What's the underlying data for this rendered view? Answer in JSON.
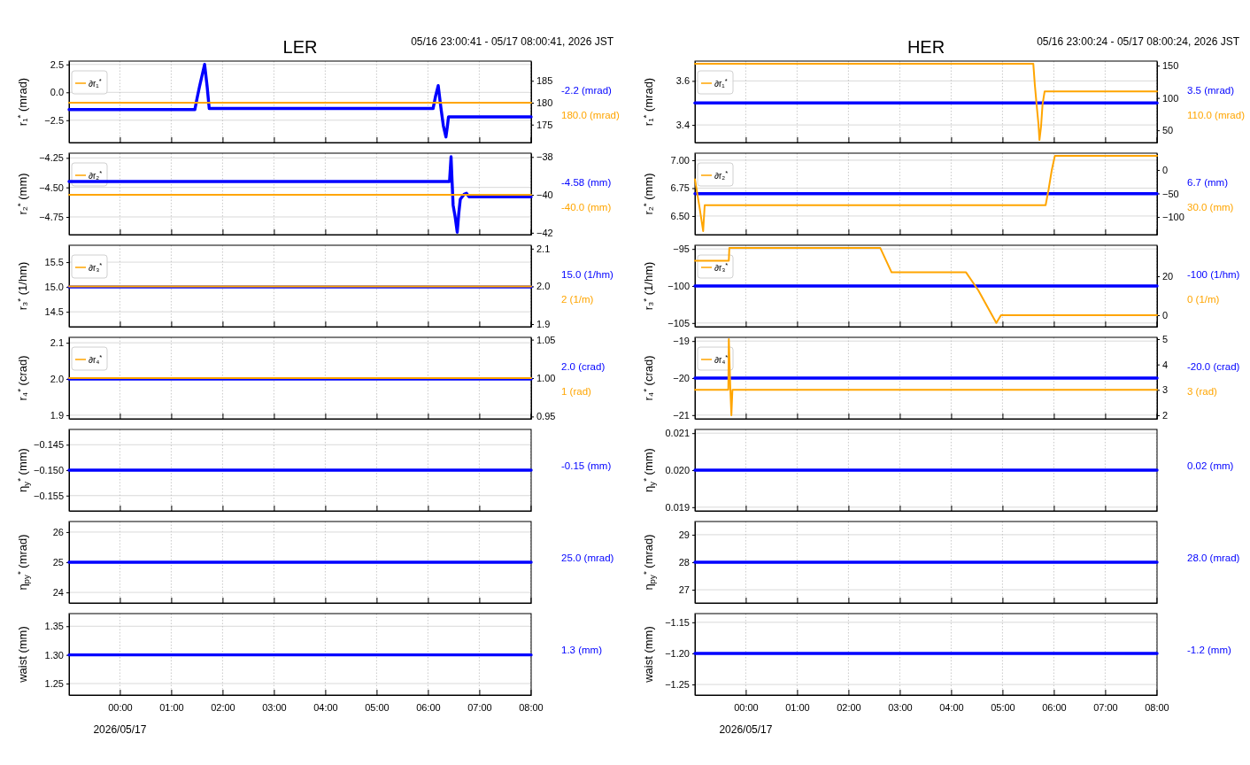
{
  "chart_data": [
    {
      "type": "line",
      "title": "LER",
      "subtitle": "05/16 23:00:41 - 05/17 08:00:41, 2026 JST",
      "ylabel": "r₁$^{*}$ (mrad)",
      "tick_labels": "y",
      "xlim": [
        -0.99,
        8.01
      ],
      "xticks": [
        0,
        1,
        2,
        3,
        4,
        5,
        6,
        7,
        8
      ],
      "ylim": [
        -4.5,
        2.8
      ],
      "yticks": [
        {
          "value": -2.5,
          "label": "−2.5"
        },
        {
          "value": 0,
          "label": "0.0"
        },
        {
          "value": 2.5,
          "label": "2.5"
        }
      ],
      "y2lim": [
        170.9,
        189.5
      ],
      "y2ticks": [
        175,
        180,
        185
      ],
      "grid": true,
      "legend": "top left",
      "annotations": [
        "-2.2 (mrad)",
        "180.0 (mrad)"
      ],
      "series": [
        {
          "color": "#0000ff",
          "x": [
            -0.99,
            1.46,
            1.5,
            1.55,
            1.6,
            1.65,
            1.7,
            1.74,
            6.1,
            6.15,
            6.2,
            6.25,
            6.3,
            6.35,
            6.38,
            6.4,
            8.01
          ],
          "values": [
            -1.55,
            -1.55,
            -0.6,
            0.5,
            1.5,
            2.5,
            0.5,
            -1.45,
            -1.45,
            -0.3,
            0.6,
            -1.3,
            -3,
            -4.0,
            -3.0,
            -2.2,
            -2.2
          ]
        },
        {
          "name": "∂r₁$^{*}$",
          "color": "#ffa500",
          "axis": "y2",
          "x": [
            -0.99,
            8.01
          ],
          "values": [
            180,
            180
          ]
        }
      ]
    },
    {
      "type": "line",
      "ylabel": "r₂$^{*}$ (mm)",
      "tick_labels": "y",
      "xlim": [
        -0.99,
        8.01
      ],
      "xticks": [
        0,
        1,
        2,
        3,
        4,
        5,
        6,
        7,
        8
      ],
      "ylim": [
        -4.9,
        -4.21
      ],
      "yticks": [
        {
          "value": -4.75,
          "label": "−4.75"
        },
        {
          "value": -4.5,
          "label": "−4.50"
        },
        {
          "value": -4.25,
          "label": "−4.25"
        }
      ],
      "y2lim": [
        -42.1,
        -37.8
      ],
      "y2ticks": [
        {
          "value": -42,
          "label": "−42"
        },
        {
          "value": -40,
          "label": "−40"
        },
        {
          "value": -38,
          "label": "−38"
        }
      ],
      "grid": true,
      "legend": "top left",
      "annotations": [
        "-4.58 (mm)",
        "-40.0 (mm)"
      ],
      "series": [
        {
          "color": "#0000ff",
          "x": [
            -0.99,
            6.42,
            6.45,
            6.47,
            6.49,
            6.53,
            6.57,
            6.6,
            6.63,
            6.7,
            6.75,
            6.8,
            8.01
          ],
          "values": [
            -4.45,
            -4.45,
            -4.24,
            -4.45,
            -4.65,
            -4.75,
            -4.88,
            -4.72,
            -4.6,
            -4.56,
            -4.55,
            -4.58,
            -4.58
          ]
        },
        {
          "name": "∂r₂$^{*}$",
          "color": "#ffa500",
          "axis": "y2",
          "x": [
            -0.99,
            8.01
          ],
          "values": [
            -40,
            -40
          ]
        }
      ]
    },
    {
      "type": "line",
      "ylabel": "r₃$^{*}$ (1/hm)",
      "tick_labels": "y",
      "xlim": [
        -0.99,
        8.01
      ],
      "xticks": [
        0,
        1,
        2,
        3,
        4,
        5,
        6,
        7,
        8
      ],
      "ylim": [
        14.2,
        15.84
      ],
      "yticks": [
        {
          "value": 14.5,
          "label": "14.5"
        },
        {
          "value": 15,
          "label": "15.0"
        },
        {
          "value": 15.5,
          "label": "15.5"
        }
      ],
      "y2lim": [
        1.893,
        2.109
      ],
      "y2ticks": [
        1.9,
        {
          "value": 2,
          "label": "2.0"
        },
        2.1
      ],
      "grid": true,
      "legend": "top left",
      "annotations": [
        "15.0 (1/hm)",
        "2 (1/m)"
      ],
      "series": [
        {
          "color": "#0000ff",
          "x": [
            -0.99,
            8.01
          ],
          "values": [
            15,
            15
          ]
        },
        {
          "name": "∂r₃$^{*}$",
          "color": "#ffa500",
          "axis": "y2",
          "x": [
            -0.99,
            8.01
          ],
          "values": [
            2,
            2
          ]
        }
      ]
    },
    {
      "type": "line",
      "ylabel": "r₄$^{*}$ (crad)",
      "tick_labels": "y",
      "xlim": [
        -0.99,
        8.01
      ],
      "xticks": [
        0,
        1,
        2,
        3,
        4,
        5,
        6,
        7,
        8
      ],
      "ylim": [
        1.89,
        2.115
      ],
      "yticks": [
        1.9,
        {
          "value": 2,
          "label": "2.0"
        },
        2.1
      ],
      "y2lim": [
        0.947,
        1.053
      ],
      "y2ticks": [
        0.95,
        {
          "value": 1,
          "label": "1.00"
        },
        1.05
      ],
      "grid": true,
      "legend": "top left",
      "annotations": [
        "2.0 (crad)",
        "1 (rad)"
      ],
      "series": [
        {
          "color": "#0000ff",
          "x": [
            -0.99,
            8.01
          ],
          "values": [
            2,
            2
          ]
        },
        {
          "name": "∂r₄$^{*}$",
          "color": "#ffa500",
          "axis": "y2",
          "x": [
            -0.99,
            8.01
          ],
          "values": [
            1,
            1
          ]
        }
      ]
    },
    {
      "type": "line",
      "ylabel": "η$_{y}$$^{*}$ (mm)",
      "tick_labels": "y",
      "xlim": [
        -0.99,
        8.01
      ],
      "xticks": [
        0,
        1,
        2,
        3,
        4,
        5,
        6,
        7,
        8
      ],
      "ylim": [
        -0.158,
        -0.142
      ],
      "yticks": [
        {
          "value": -0.155,
          "label": "−0.155"
        },
        {
          "value": -0.15,
          "label": "−0.150"
        },
        {
          "value": -0.145,
          "label": "−0.145"
        }
      ],
      "grid": true,
      "annotations": [
        "-0.15 (mm)"
      ],
      "series": [
        {
          "color": "#0000ff",
          "x": [
            -0.99,
            8.01
          ],
          "values": [
            -0.15,
            -0.15
          ]
        }
      ]
    },
    {
      "type": "line",
      "ylabel": "η$_{py}$$^{*}$ (mrad)",
      "tick_labels": "y",
      "xlim": [
        -0.99,
        8.01
      ],
      "xticks": [
        0,
        1,
        2,
        3,
        4,
        5,
        6,
        7,
        8
      ],
      "ylim": [
        23.65,
        26.35
      ],
      "yticks": [
        24,
        25,
        26
      ],
      "grid": true,
      "annotations": [
        "25.0 (mrad)"
      ],
      "series": [
        {
          "color": "#0000ff",
          "x": [
            -0.99,
            8.01
          ],
          "values": [
            25,
            25
          ]
        }
      ]
    },
    {
      "type": "line",
      "ylabel": "waist (mm)",
      "xlim": [
        -0.99,
        8.01
      ],
      "xticks": [
        {
          "value": 0,
          "label": "00:00"
        },
        {
          "value": 1,
          "label": "01:00"
        },
        {
          "value": 2,
          "label": "02:00"
        },
        {
          "value": 3,
          "label": "03:00"
        },
        {
          "value": 4,
          "label": "04:00"
        },
        {
          "value": 5,
          "label": "05:00"
        },
        {
          "value": 6,
          "label": "06:00"
        },
        {
          "value": 7,
          "label": "07:00"
        },
        {
          "value": 8,
          "label": "08:00"
        }
      ],
      "ylim": [
        1.23,
        1.372
      ],
      "yticks": [
        1.25,
        {
          "value": 1.3,
          "label": "1.30"
        },
        1.35
      ],
      "grid": true,
      "annotations": [
        "1.3 (mm)",
        "2026/05/17"
      ],
      "series": [
        {
          "color": "#0000ff",
          "x": [
            -0.99,
            8.01
          ],
          "values": [
            1.3,
            1.3
          ]
        }
      ]
    },
    {
      "type": "line",
      "title": "HER",
      "subtitle": "05/16 23:00:24 - 05/17 08:00:24, 2026 JST",
      "ylabel": "r₁$^{*}$ (mrad)",
      "tick_labels": "y",
      "xlim": [
        -0.99,
        8.01
      ],
      "xticks": [
        0,
        1,
        2,
        3,
        4,
        5,
        6,
        7,
        8
      ],
      "ylim": [
        3.32,
        3.69
      ],
      "yticks": [
        3.4,
        3.6
      ],
      "y2lim": [
        31,
        157
      ],
      "y2ticks": [
        50,
        100,
        150
      ],
      "grid": true,
      "legend": "top left",
      "annotations": [
        "3.5 (mrad)",
        "110.0 (mrad)"
      ],
      "series": [
        {
          "color": "#0000ff",
          "x": [
            -0.99,
            8.01
          ],
          "values": [
            3.5,
            3.5
          ]
        },
        {
          "name": "∂r₁$^{*}$",
          "color": "#ffa500",
          "axis": "y2",
          "x": [
            -0.99,
            5.6,
            5.63,
            5.67,
            5.7,
            5.72,
            5.75,
            5.78,
            5.82,
            8.01
          ],
          "values": [
            153,
            153,
            120,
            85,
            60,
            35,
            55,
            90,
            110,
            110
          ]
        }
      ]
    },
    {
      "type": "line",
      "ylabel": "r₂$^{*}$ (mm)",
      "tick_labels": "y",
      "xlim": [
        -0.99,
        8.01
      ],
      "xticks": [
        0,
        1,
        2,
        3,
        4,
        5,
        6,
        7,
        8
      ],
      "ylim": [
        6.333,
        7.063
      ],
      "yticks": [
        {
          "value": 6.5,
          "label": "6.50"
        },
        {
          "value": 6.75,
          "label": "6.75"
        },
        {
          "value": 7,
          "label": "7.00"
        }
      ],
      "y2lim": [
        -137.7,
        35.8
      ],
      "y2ticks": [
        {
          "value": -100,
          "label": "−100"
        },
        {
          "value": -50,
          "label": "−50"
        },
        0
      ],
      "grid": true,
      "legend": "top left",
      "annotations": [
        "6.7 (mm)",
        "30.0 (mm)"
      ],
      "series": [
        {
          "color": "#0000ff",
          "x": [
            -0.99,
            8.01
          ],
          "values": [
            6.7,
            6.7
          ]
        },
        {
          "name": "∂r₂$^{*}$",
          "color": "#ffa500",
          "axis": "y2",
          "x": [
            -0.99,
            -0.9,
            -0.83,
            -0.8,
            5.84,
            5.9,
            5.96,
            6.02,
            8.01
          ],
          "values": [
            -20,
            -80,
            -130,
            -75,
            -75,
            -40,
            0,
            30,
            30
          ]
        }
      ]
    },
    {
      "type": "line",
      "ylabel": "r₃$^{*}$ (1/hm)",
      "tick_labels": "y",
      "xlim": [
        -0.99,
        8.01
      ],
      "xticks": [
        0,
        1,
        2,
        3,
        4,
        5,
        6,
        7,
        8
      ],
      "ylim": [
        -105.5,
        -94.5
      ],
      "yticks": [
        {
          "value": -105,
          "label": "−105"
        },
        {
          "value": -100,
          "label": "−100"
        },
        {
          "value": -95,
          "label": "−95"
        }
      ],
      "y2lim": [
        -5.9,
        35.9
      ],
      "y2ticks": [
        0,
        20
      ],
      "grid": true,
      "legend": "top left",
      "annotations": [
        "-100 (1/hm)",
        "0 (1/m)"
      ],
      "series": [
        {
          "color": "#0000ff",
          "x": [
            -0.99,
            8.01
          ],
          "values": [
            -100,
            -100
          ]
        },
        {
          "name": "∂r₃$^{*}$",
          "color": "#ffa500",
          "axis": "y2",
          "x": [
            -0.99,
            -0.33,
            -0.32,
            2.62,
            2.84,
            4.29,
            4.53,
            4.88,
            4.97,
            8.01
          ],
          "values": [
            28,
            28,
            34.5,
            34.5,
            22,
            22,
            12.7,
            -4,
            0,
            0
          ]
        }
      ]
    },
    {
      "type": "line",
      "ylabel": "r₄$^{*}$ (crad)",
      "tick_labels": "y",
      "xlim": [
        -0.99,
        8.01
      ],
      "xticks": [
        0,
        1,
        2,
        3,
        4,
        5,
        6,
        7,
        8
      ],
      "ylim": [
        -21.1,
        -18.9
      ],
      "yticks": [
        {
          "value": -21,
          "label": "−21"
        },
        {
          "value": -20,
          "label": "−20"
        },
        {
          "value": -19,
          "label": "−19"
        }
      ],
      "y2lim": [
        1.86,
        5.07
      ],
      "y2ticks": [
        2,
        3,
        4,
        5
      ],
      "grid": true,
      "legend": "top left",
      "annotations": [
        "-20.0 (crad)",
        "3 (rad)"
      ],
      "series": [
        {
          "color": "#0000ff",
          "x": [
            -0.99,
            8.01
          ],
          "values": [
            -20,
            -20
          ]
        },
        {
          "name": "∂r₄$^{*}$",
          "color": "#ffa500",
          "axis": "y2",
          "x": [
            -0.99,
            -0.34,
            -0.33,
            -0.3,
            -0.28,
            -0.26,
            8.01
          ],
          "values": [
            3,
            3,
            5,
            3,
            2,
            3,
            3
          ]
        }
      ]
    },
    {
      "type": "line",
      "ylabel": "η$_{y}$$^{*}$ (mm)",
      "tick_labels": "y",
      "xlim": [
        -0.99,
        8.01
      ],
      "xticks": [
        0,
        1,
        2,
        3,
        4,
        5,
        6,
        7,
        8
      ],
      "ylim": [
        0.0189,
        0.0211
      ],
      "yticks": [
        0.019,
        {
          "value": 0.02,
          "label": "0.020"
        },
        0.021
      ],
      "grid": true,
      "annotations": [
        "0.02 (mm)"
      ],
      "series": [
        {
          "color": "#0000ff",
          "x": [
            -0.99,
            8.01
          ],
          "values": [
            0.02,
            0.02
          ]
        }
      ]
    },
    {
      "type": "line",
      "ylabel": "η$_{py}$$^{*}$ (mrad)",
      "tick_labels": "y",
      "xlim": [
        -0.99,
        8.01
      ],
      "xticks": [
        0,
        1,
        2,
        3,
        4,
        5,
        6,
        7,
        8
      ],
      "ylim": [
        26.52,
        29.48
      ],
      "yticks": [
        27,
        28,
        29
      ],
      "grid": true,
      "annotations": [
        "28.0 (mrad)"
      ],
      "series": [
        {
          "color": "#0000ff",
          "x": [
            -0.99,
            8.01
          ],
          "values": [
            28,
            28
          ]
        }
      ]
    },
    {
      "type": "line",
      "ylabel": "waist (mm)",
      "xlim": [
        -0.99,
        8.01
      ],
      "xticks": [
        {
          "value": 0,
          "label": "00:00"
        },
        {
          "value": 1,
          "label": "01:00"
        },
        {
          "value": 2,
          "label": "02:00"
        },
        {
          "value": 3,
          "label": "03:00"
        },
        {
          "value": 4,
          "label": "04:00"
        },
        {
          "value": 5,
          "label": "05:00"
        },
        {
          "value": 6,
          "label": "06:00"
        },
        {
          "value": 7,
          "label": "07:00"
        },
        {
          "value": 8,
          "label": "08:00"
        }
      ],
      "ylim": [
        -1.267,
        -1.136
      ],
      "yticks": [
        {
          "value": -1.25,
          "label": "−1.25"
        },
        {
          "value": -1.2,
          "label": "−1.20"
        },
        {
          "value": -1.15,
          "label": "−1.15"
        }
      ],
      "grid": true,
      "annotations": [
        "-1.2 (mm)",
        "2026/05/17"
      ],
      "series": [
        {
          "color": "#0000ff",
          "x": [
            -0.99,
            8.01
          ],
          "values": [
            -1.2,
            -1.2
          ]
        }
      ]
    }
  ]
}
